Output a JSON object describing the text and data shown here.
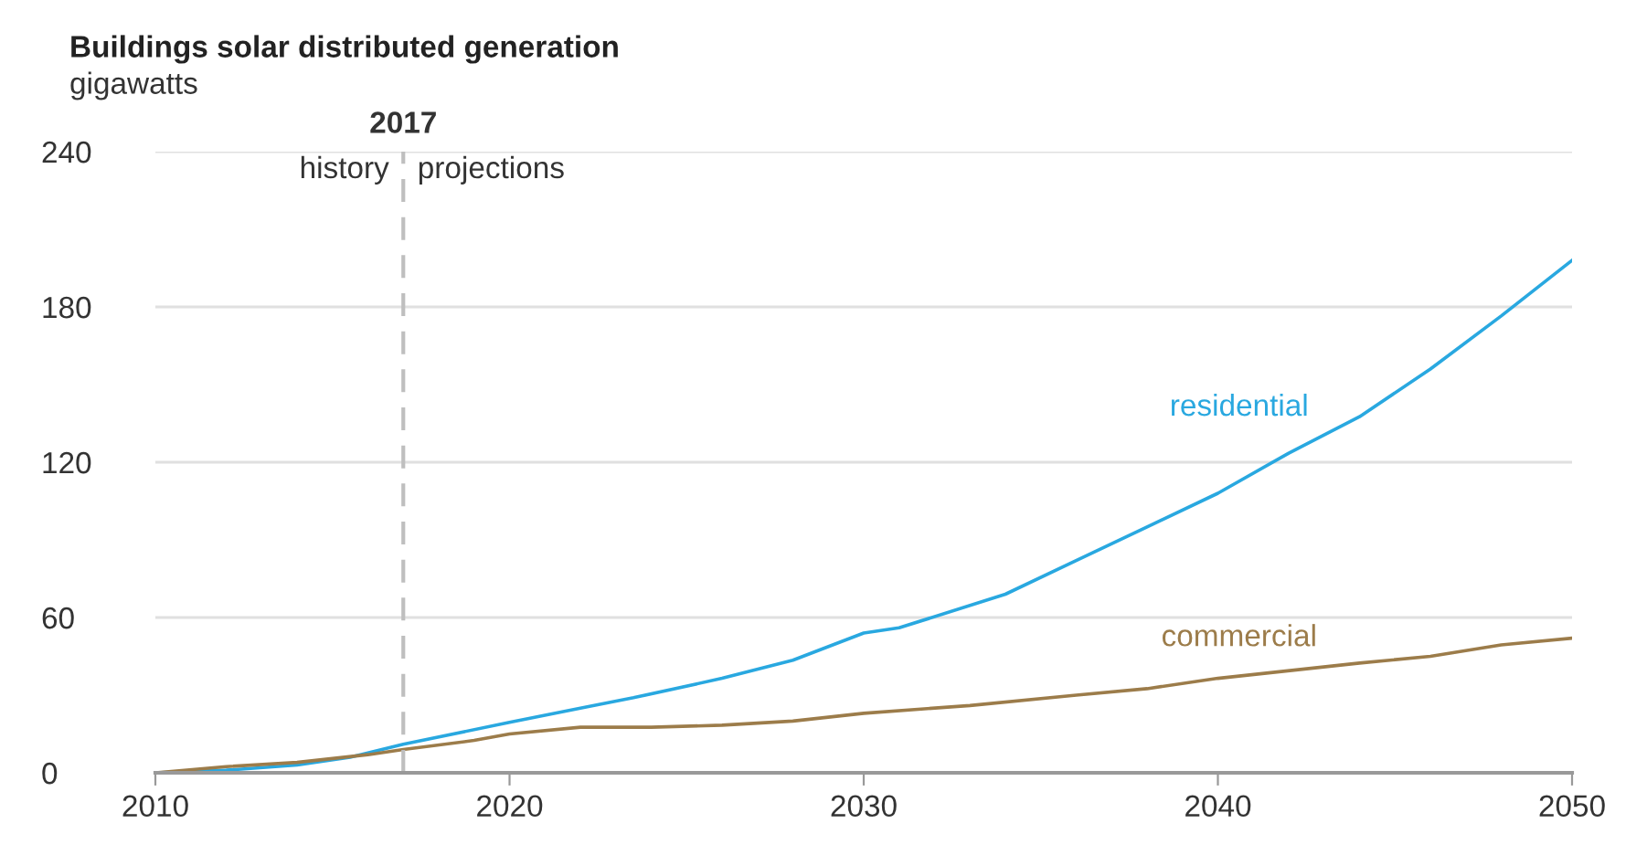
{
  "chart_data": {
    "type": "line",
    "title": "Buildings solar distributed generation",
    "ylabel": "gigawatts",
    "xlim": [
      2010,
      2050
    ],
    "xticks": [
      2010,
      2020,
      2030,
      2040,
      2050
    ],
    "ylim": [
      0,
      240
    ],
    "yticks": [
      0,
      60,
      120,
      180,
      240
    ],
    "grid": "y",
    "series": [
      {
        "name": "residential",
        "color": "#29a8e0",
        "x": [
          2010,
          2012,
          2014,
          2015.5,
          2017,
          2020,
          2022,
          2023.5,
          2026,
          2028,
          2030,
          2031,
          2034,
          2036,
          2038,
          2040,
          2042,
          2044,
          2046,
          2048,
          2050
        ],
        "values": [
          0,
          1,
          3,
          6,
          11,
          19.5,
          25,
          29,
          36.5,
          43.5,
          54,
          56,
          69,
          82,
          95,
          108,
          123.5,
          137.6,
          156,
          176.5,
          198
        ]
      },
      {
        "name": "commercial",
        "color": "#9c7c4a",
        "x": [
          2010,
          2012,
          2014,
          2016,
          2017,
          2019,
          2020,
          2022,
          2024,
          2026,
          2028,
          2030,
          2033,
          2036,
          2038,
          2040,
          2044,
          2046,
          2048,
          2050
        ],
        "values": [
          0,
          2.4,
          4,
          7,
          9,
          12.5,
          15,
          17.6,
          17.6,
          18.4,
          20,
          23,
          26,
          30,
          32.5,
          36.5,
          42.4,
          45,
          49.4,
          52
        ]
      }
    ],
    "ref_lines": [
      {
        "axis": "x",
        "value": 2017,
        "label": "2017",
        "color": "#bfbfbf",
        "line_style": "dashed"
      }
    ],
    "annotations": [
      "history",
      "projections"
    ]
  }
}
